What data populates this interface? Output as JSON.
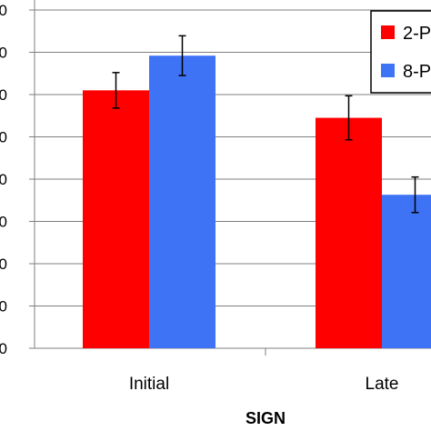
{
  "chart_data": {
    "type": "bar",
    "title": "",
    "xlabel": "SIGN",
    "ylabel": "",
    "categories": [
      "Initial",
      "Late"
    ],
    "ytick_labels": [
      "0",
      "0",
      "0",
      "0",
      "0",
      "0",
      "0",
      "0",
      "0"
    ],
    "grid": true,
    "legend_position": "top-right",
    "series": [
      {
        "name": "2-P",
        "color": "#ff0000",
        "values": [
          6.1,
          5.45
        ],
        "errors": [
          0.42,
          0.52
        ]
      },
      {
        "name": "8-P",
        "color": "#3f73f5",
        "values": [
          6.92,
          3.63
        ],
        "errors": [
          0.47,
          0.42
        ]
      }
    ],
    "ylim": [
      0,
      8.2
    ]
  }
}
